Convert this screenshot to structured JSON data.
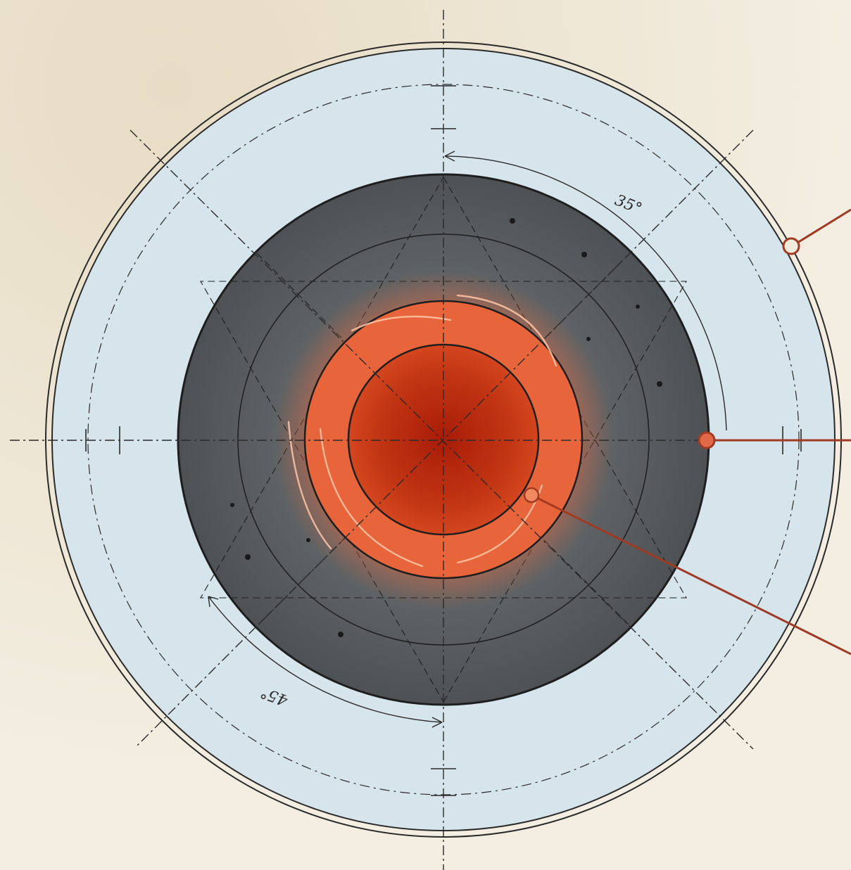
{
  "diagram": {
    "colors": {
      "paper": "#f1ebdc",
      "outer_ring": "#d6e4ec",
      "mid_ring": "#5d6163",
      "core_glow": "#e8643a",
      "inner_core": "#b42a10",
      "ink": "#2a2a2a",
      "callout": "#a13a22"
    },
    "annotations": {
      "angle_top": "35°",
      "angle_bottom": "45°"
    },
    "callouts": [
      {
        "target": "outer-ring-boundary"
      },
      {
        "target": "mid-ring-boundary"
      },
      {
        "target": "core-point"
      }
    ]
  }
}
